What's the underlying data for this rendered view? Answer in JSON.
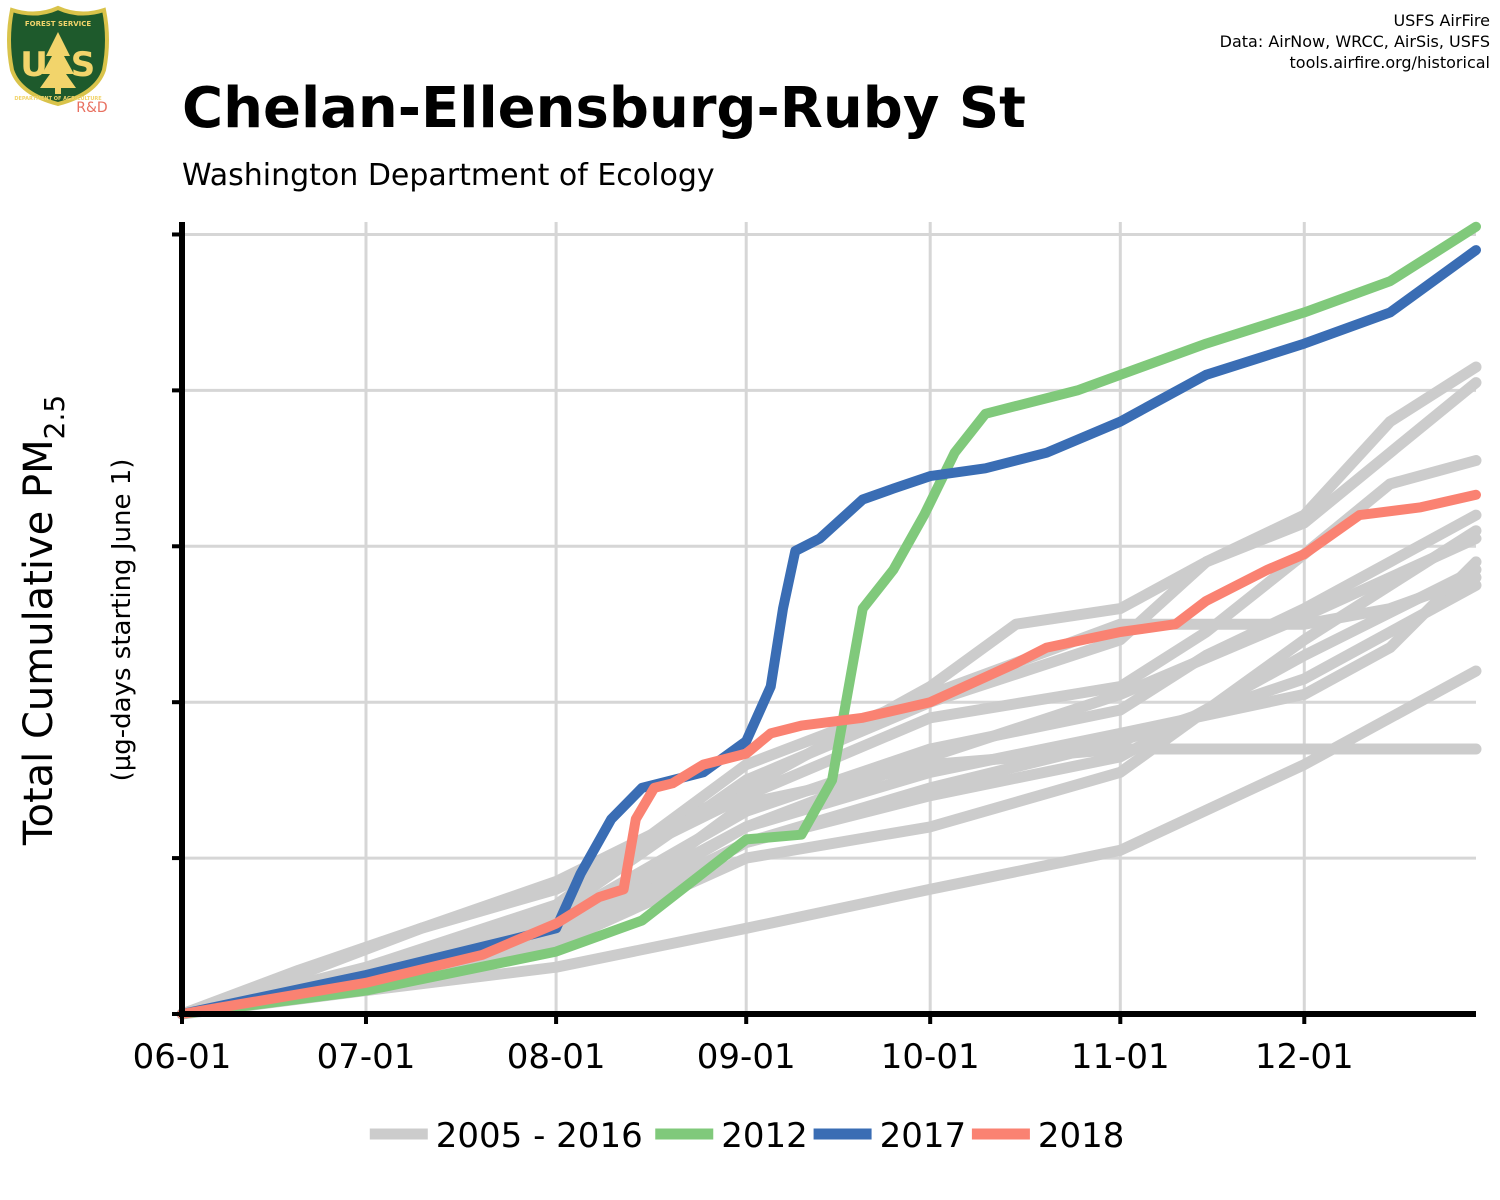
{
  "logo": {
    "letters_left": "U",
    "letters_right": "S",
    "ring_top": "FOREST SERVICE",
    "ring_bottom": "DEPARTMENT OF AGRICULTURE",
    "tag": "R&D",
    "colors": {
      "shield": "#1e5a2c",
      "rim": "#d9c34a",
      "tree": "#f2d46b"
    }
  },
  "credits": [
    "USFS AirFire",
    "Data: AirNow, WRCC, AirSis, USFS",
    "tools.airfire.org/historical"
  ],
  "chart_data": {
    "type": "line",
    "title": "Chelan-Ellensburg-Ruby St",
    "subtitle": "Washington Department of Ecology",
    "ylabel_main": "Total Cumulative PM",
    "ylabel_sub": "2.5",
    "ylabel_units": "(µg-days starting June 1)",
    "x_start": "06-01",
    "x_end": "12-29",
    "x_ticks": [
      "06-01",
      "07-01",
      "08-01",
      "09-01",
      "10-01",
      "11-01",
      "12-01"
    ],
    "ylim": [
      0,
      5
    ],
    "y_ticks": [
      0,
      1,
      2,
      3,
      4,
      5
    ],
    "y_tick_labels_visible": false,
    "grid": true,
    "legend_position": "bottom",
    "colors": {
      "history": "#cccccc",
      "2012": "#80c97b",
      "2017": "#3a6db4",
      "2018": "#fa8272",
      "grid": "#d6d6d6",
      "axis": "#000000"
    },
    "legend": [
      {
        "label": "2005 - 2016",
        "color": "#cccccc"
      },
      {
        "label": "2012",
        "color": "#80c97b"
      },
      {
        "label": "2017",
        "color": "#3a6db4"
      },
      {
        "label": "2018",
        "color": "#fa8272"
      }
    ],
    "history_series": [
      {
        "x": [
          "06-01",
          "06-20",
          "07-10",
          "08-01",
          "09-01",
          "10-01",
          "10-15",
          "11-01",
          "11-15",
          "12-01",
          "12-15",
          "12-29"
        ],
        "y": [
          0,
          0.28,
          0.55,
          0.85,
          1.45,
          2.1,
          2.5,
          2.6,
          2.9,
          3.15,
          3.6,
          4.05
        ]
      },
      {
        "x": [
          "06-01",
          "06-20",
          "07-10",
          "08-01",
          "09-01",
          "10-01",
          "11-01",
          "11-15",
          "12-01",
          "12-15",
          "12-29"
        ],
        "y": [
          0,
          0.25,
          0.55,
          0.8,
          1.4,
          1.9,
          2.1,
          2.45,
          2.95,
          3.4,
          3.55
        ]
      },
      {
        "x": [
          "06-01",
          "07-01",
          "08-01",
          "09-01",
          "10-01",
          "11-01",
          "12-01",
          "12-15",
          "12-29"
        ],
        "y": [
          0,
          0.3,
          0.7,
          1.6,
          2.05,
          2.5,
          2.5,
          2.6,
          2.8
        ]
      },
      {
        "x": [
          "06-01",
          "07-01",
          "08-01",
          "09-01",
          "10-01",
          "11-01",
          "11-15",
          "12-01",
          "12-15",
          "12-29"
        ],
        "y": [
          0,
          0.28,
          0.6,
          1.3,
          1.7,
          1.95,
          2.3,
          2.6,
          2.9,
          3.2
        ]
      },
      {
        "x": [
          "06-01",
          "07-01",
          "08-01",
          "09-01",
          "10-01",
          "11-01",
          "12-01",
          "12-29"
        ],
        "y": [
          0,
          0.25,
          0.5,
          1.1,
          1.4,
          1.65,
          2.3,
          2.85
        ]
      },
      {
        "x": [
          "06-01",
          "07-01",
          "08-01",
          "09-01",
          "10-01",
          "11-01",
          "12-01",
          "12-15",
          "12-29"
        ],
        "y": [
          0,
          0.22,
          0.5,
          1.2,
          1.55,
          1.8,
          2.05,
          2.35,
          2.9
        ]
      },
      {
        "x": [
          "06-01",
          "07-01",
          "08-01",
          "09-01",
          "10-01",
          "11-01",
          "12-01",
          "12-29"
        ],
        "y": [
          0,
          0.2,
          0.45,
          1.0,
          1.2,
          1.55,
          2.4,
          3.1
        ]
      },
      {
        "x": [
          "06-01",
          "07-01",
          "08-01",
          "09-01",
          "10-01",
          "11-01",
          "12-01",
          "12-29"
        ],
        "y": [
          0,
          0.15,
          0.3,
          0.55,
          0.8,
          1.05,
          1.6,
          2.2
        ]
      },
      {
        "x": [
          "06-01",
          "07-01",
          "08-01",
          "09-01",
          "10-01",
          "11-01",
          "12-01",
          "12-29"
        ],
        "y": [
          0,
          0.2,
          0.45,
          1.35,
          1.6,
          1.7,
          1.7,
          1.7
        ]
      },
      {
        "x": [
          "06-01",
          "07-01",
          "08-01",
          "09-01",
          "10-01",
          "11-01",
          "11-15",
          "12-01",
          "12-15",
          "12-29"
        ],
        "y": [
          0,
          0.25,
          0.65,
          1.5,
          2.0,
          2.4,
          2.9,
          3.2,
          3.8,
          4.15
        ]
      },
      {
        "x": [
          "06-01",
          "07-01",
          "08-01",
          "09-01",
          "10-01",
          "11-01",
          "12-01",
          "12-29"
        ],
        "y": [
          0,
          0.25,
          0.55,
          1.2,
          1.65,
          2.05,
          2.55,
          3.05
        ]
      },
      {
        "x": [
          "06-01",
          "07-01",
          "08-01",
          "09-01",
          "10-01",
          "11-01",
          "12-01",
          "12-29"
        ],
        "y": [
          0,
          0.2,
          0.45,
          1.1,
          1.45,
          1.75,
          2.15,
          2.75
        ]
      }
    ],
    "series": [
      {
        "name": "2012",
        "x": [
          "06-01",
          "07-01",
          "08-01",
          "08-15",
          "09-01",
          "09-10",
          "09-15",
          "09-20",
          "09-25",
          "09-30",
          "10-05",
          "10-10",
          "10-15",
          "10-25",
          "11-01",
          "11-15",
          "12-01",
          "12-15",
          "12-29"
        ],
        "y": [
          0,
          0.15,
          0.4,
          0.6,
          1.12,
          1.15,
          1.5,
          2.6,
          2.85,
          3.2,
          3.6,
          3.85,
          3.9,
          4.0,
          4.1,
          4.3,
          4.5,
          4.7,
          5.05
        ]
      },
      {
        "name": "2017",
        "x": [
          "06-01",
          "07-01",
          "07-25",
          "08-01",
          "08-05",
          "08-10",
          "08-15",
          "08-25",
          "09-01",
          "09-05",
          "09-07",
          "09-09",
          "09-13",
          "09-20",
          "09-25",
          "10-01",
          "10-10",
          "10-20",
          "11-01",
          "11-15",
          "12-01",
          "12-15",
          "12-29"
        ],
        "y": [
          0,
          0.25,
          0.48,
          0.55,
          0.9,
          1.25,
          1.45,
          1.55,
          1.75,
          2.1,
          2.6,
          2.97,
          3.05,
          3.3,
          3.37,
          3.45,
          3.5,
          3.6,
          3.8,
          4.1,
          4.3,
          4.5,
          4.9
        ]
      },
      {
        "name": "2018",
        "x": [
          "06-01",
          "07-01",
          "07-20",
          "08-01",
          "08-08",
          "08-12",
          "08-14",
          "08-17",
          "08-20",
          "08-25",
          "09-01",
          "09-05",
          "09-10",
          "09-20",
          "10-01",
          "10-15",
          "10-20",
          "11-01",
          "11-10",
          "11-15",
          "11-25",
          "12-01",
          "12-10",
          "12-20",
          "12-29"
        ],
        "y": [
          0,
          0.2,
          0.38,
          0.58,
          0.75,
          0.8,
          1.25,
          1.45,
          1.48,
          1.6,
          1.67,
          1.8,
          1.85,
          1.9,
          2.0,
          2.25,
          2.35,
          2.45,
          2.5,
          2.65,
          2.85,
          2.95,
          3.2,
          3.25,
          3.33
        ]
      }
    ]
  }
}
